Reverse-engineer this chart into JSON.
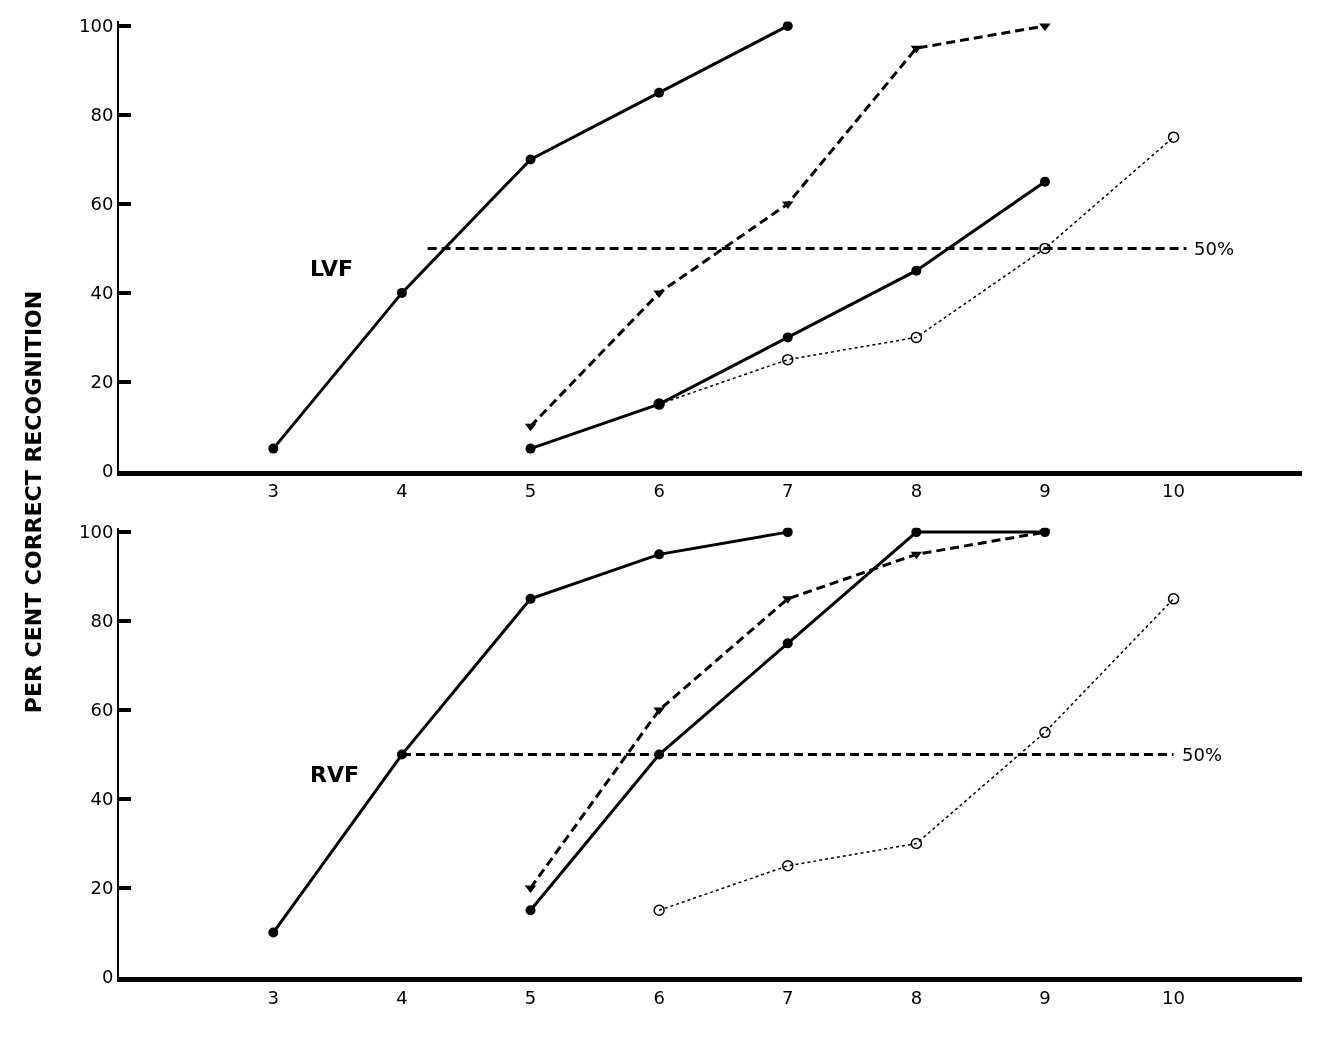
{
  "chart_data": [
    {
      "type": "line",
      "title": "LVF",
      "ylabel": "PER CENT CORRECT RECOGNITION",
      "ylim": [
        0,
        101
      ],
      "yticks": [
        0,
        20,
        40,
        60,
        80,
        100
      ],
      "xlim": [
        1.8,
        11
      ],
      "xticks": [
        3,
        4,
        5,
        6,
        7,
        8,
        9,
        10
      ],
      "series": [
        {
          "color": "#000000",
          "line_style": "solid",
          "marker": "circle",
          "x": [
            3,
            4,
            5,
            6,
            7
          ],
          "values": [
            5,
            40,
            70,
            85,
            100
          ]
        },
        {
          "color": "#000000",
          "line_style": "dashed",
          "marker": "triangle",
          "x": [
            5,
            6,
            7,
            8,
            9
          ],
          "values": [
            10,
            40,
            60,
            95,
            100
          ]
        },
        {
          "color": "#000000",
          "line_style": "solid",
          "marker": "circle",
          "x": [
            5,
            6,
            7,
            8,
            9
          ],
          "values": [
            5,
            15,
            30,
            45,
            65
          ]
        },
        {
          "color": "#000000",
          "line_style": "dotted",
          "marker": "open circle",
          "x": [
            6,
            7,
            8,
            9,
            10
          ],
          "values": [
            15,
            25,
            30,
            50,
            75
          ]
        },
        {
          "color": "#000000",
          "line_style": "dashed",
          "marker": "none",
          "x": [
            4.2,
            10.1
          ],
          "values": [
            50,
            50
          ]
        }
      ],
      "annotations": [
        {
          "text": "50%",
          "x": 10.1,
          "y": 50
        }
      ]
    },
    {
      "type": "line",
      "title": "RVF",
      "ylim": [
        0,
        101
      ],
      "yticks": [
        0,
        20,
        40,
        60,
        80,
        100
      ],
      "xlim": [
        1.8,
        11
      ],
      "xticks": [
        3,
        4,
        5,
        6,
        7,
        8,
        9,
        10
      ],
      "series": [
        {
          "color": "#000000",
          "line_style": "solid",
          "marker": "circle",
          "x": [
            3,
            4,
            5,
            6,
            7
          ],
          "values": [
            10,
            50,
            85,
            95,
            100
          ]
        },
        {
          "color": "#000000",
          "line_style": "dashed",
          "marker": "triangle",
          "x": [
            5,
            6,
            7,
            8,
            9
          ],
          "values": [
            20,
            60,
            85,
            95,
            100
          ]
        },
        {
          "color": "#000000",
          "line_style": "solid",
          "marker": "circle",
          "x": [
            5,
            6,
            7,
            8,
            9
          ],
          "values": [
            15,
            50,
            75,
            100,
            100
          ]
        },
        {
          "color": "#000000",
          "line_style": "dotted",
          "marker": "open circle",
          "x": [
            6,
            7,
            8,
            9,
            10
          ],
          "values": [
            15,
            25,
            30,
            55,
            85
          ]
        },
        {
          "color": "#000000",
          "line_style": "dashed",
          "marker": "none",
          "x": [
            4,
            10
          ],
          "values": [
            50,
            50
          ]
        }
      ],
      "annotations": [
        {
          "text": "50%",
          "x": 10,
          "y": 50
        }
      ]
    }
  ]
}
